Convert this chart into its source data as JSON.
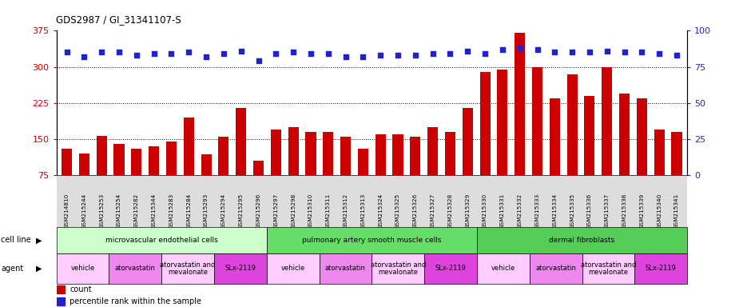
{
  "title": "GDS2987 / GI_31341107-S",
  "samples": [
    "GSM214810",
    "GSM215244",
    "GSM215253",
    "GSM215254",
    "GSM215282",
    "GSM215344",
    "GSM215283",
    "GSM215284",
    "GSM215293",
    "GSM215294",
    "GSM215295",
    "GSM215296",
    "GSM215297",
    "GSM215298",
    "GSM215310",
    "GSM215311",
    "GSM215312",
    "GSM215313",
    "GSM215324",
    "GSM215325",
    "GSM215326",
    "GSM215327",
    "GSM215328",
    "GSM215329",
    "GSM215330",
    "GSM215331",
    "GSM215332",
    "GSM215333",
    "GSM215334",
    "GSM215335",
    "GSM215336",
    "GSM215337",
    "GSM215338",
    "GSM215339",
    "GSM215340",
    "GSM215341"
  ],
  "counts": [
    130,
    120,
    157,
    140,
    130,
    135,
    145,
    195,
    118,
    155,
    215,
    105,
    170,
    175,
    165,
    165,
    155,
    130,
    160,
    160,
    155,
    175,
    165,
    215,
    290,
    295,
    370,
    300,
    235,
    285,
    240,
    300,
    245,
    235,
    170,
    165
  ],
  "percentiles": [
    85,
    82,
    85,
    85,
    83,
    84,
    84,
    85,
    82,
    84,
    86,
    79,
    84,
    85,
    84,
    84,
    82,
    82,
    83,
    83,
    83,
    84,
    84,
    86,
    84,
    87,
    88,
    87,
    85,
    85,
    85,
    86,
    85,
    85,
    84,
    83
  ],
  "bar_color": "#cc0000",
  "dot_color": "#2222cc",
  "ylim_left": [
    75,
    375
  ],
  "ylim_right": [
    0,
    100
  ],
  "yticks_left": [
    75,
    150,
    225,
    300,
    375
  ],
  "yticks_right": [
    0,
    25,
    50,
    75,
    100
  ],
  "grid_values": [
    150,
    225,
    300
  ],
  "cell_line_groups": [
    {
      "label": "microvascular endothelial cells",
      "start": 0,
      "end": 12,
      "color": "#ccffcc"
    },
    {
      "label": "pulmonary artery smooth muscle cells",
      "start": 12,
      "end": 24,
      "color": "#66dd66"
    },
    {
      "label": "dermal fibroblasts",
      "start": 24,
      "end": 36,
      "color": "#55cc55"
    }
  ],
  "agent_groups": [
    {
      "label": "vehicle",
      "start": 0,
      "end": 3,
      "color": "#ffccff"
    },
    {
      "label": "atorvastatin",
      "start": 3,
      "end": 6,
      "color": "#ee88ee"
    },
    {
      "label": "atorvastatin and\nmevalonate",
      "start": 6,
      "end": 9,
      "color": "#ffccff"
    },
    {
      "label": "SLx-2119",
      "start": 9,
      "end": 12,
      "color": "#dd44dd"
    },
    {
      "label": "vehicle",
      "start": 12,
      "end": 15,
      "color": "#ffccff"
    },
    {
      "label": "atorvastatin",
      "start": 15,
      "end": 18,
      "color": "#ee88ee"
    },
    {
      "label": "atorvastatin and\nmevalonate",
      "start": 18,
      "end": 21,
      "color": "#ffccff"
    },
    {
      "label": "SLx-2119",
      "start": 21,
      "end": 24,
      "color": "#dd44dd"
    },
    {
      "label": "vehicle",
      "start": 24,
      "end": 27,
      "color": "#ffccff"
    },
    {
      "label": "atorvastatin",
      "start": 27,
      "end": 30,
      "color": "#ee88ee"
    },
    {
      "label": "atorvastatin and\nmevalonate",
      "start": 30,
      "end": 33,
      "color": "#ffccff"
    },
    {
      "label": "SLx-2119",
      "start": 33,
      "end": 36,
      "color": "#dd44dd"
    }
  ],
  "legend_items": [
    {
      "label": "count",
      "color": "#cc0000"
    },
    {
      "label": "percentile rank within the sample",
      "color": "#2222cc"
    }
  ],
  "bg_color": "#ffffff",
  "axis_area_bg": "#ffffff",
  "tick_area_bg": "#dddddd"
}
